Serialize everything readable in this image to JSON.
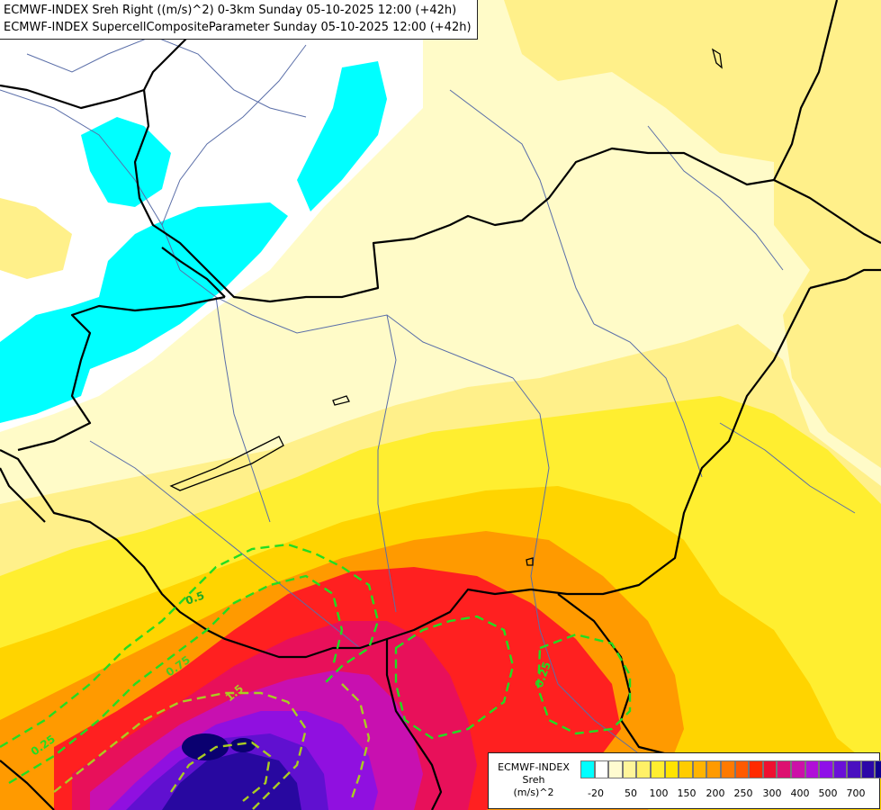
{
  "title": {
    "line1": "ECMWF-INDEX Sreh Right ((m/s)^2) 0-3km Sunday 05-10-2025 12:00 (+42h)",
    "line2": "ECMWF-INDEX SupercellCompositeParameter Sunday 05-10-2025 12:00 (+42h)"
  },
  "legend": {
    "line1": "ECMWF-INDEX",
    "line2": "Sreh",
    "line3": "(m/s)^2",
    "colors": [
      "#00ffff",
      "#ffffff",
      "#fffbd0",
      "#fff59a",
      "#fff066",
      "#ffee30",
      "#ffe400",
      "#ffcc00",
      "#ffb400",
      "#ff9a00",
      "#ff7a00",
      "#ff5a00",
      "#ff2a00",
      "#ee1030",
      "#dd1070",
      "#cc10a8",
      "#b010d8",
      "#8f10e8",
      "#6a10d8",
      "#4a10c0",
      "#2c08a8",
      "#100090"
    ],
    "ticks": [
      "-20",
      "50",
      "100",
      "150",
      "200",
      "250",
      "300",
      "400",
      "500",
      "700"
    ]
  },
  "map": {
    "fill_colors": {
      "white": "#ffffff",
      "cyan": "#00ffff",
      "pale": "#fffbc8",
      "light_yellow": "#fff08a",
      "yellow": "#ffee30",
      "gold": "#ffd400",
      "orange": "#ff9a00",
      "red": "#ff2020",
      "crimson": "#e8105a",
      "magenta": "#c810b0",
      "purple": "#9010e0",
      "violet": "#6010d0",
      "indigo": "#2808a0",
      "navy": "#0a0070"
    },
    "contour_color_low": "#22dd22",
    "contour_color_high": "#aacc22",
    "contour_labels": [
      "0.5",
      "0.75",
      "0.25",
      "1.5",
      "0.25"
    ]
  }
}
